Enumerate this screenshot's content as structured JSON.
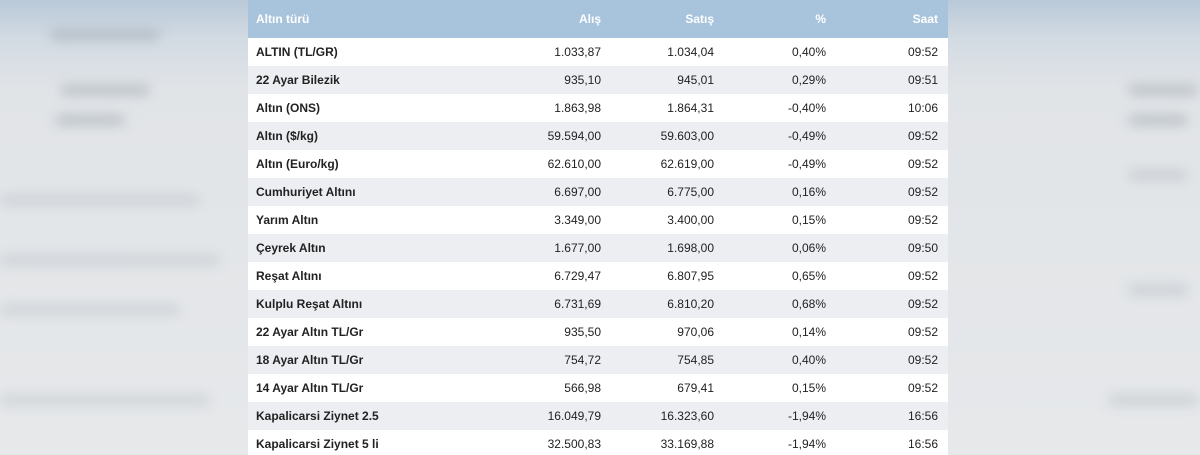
{
  "table": {
    "header": [
      "Altın türü",
      "Alış",
      "Satış",
      "%",
      "Saat"
    ],
    "rows": [
      [
        "ALTIN (TL/GR)",
        "1.033,87",
        "1.034,04",
        "0,40%",
        "09:52"
      ],
      [
        "22 Ayar Bilezik",
        "935,10",
        "945,01",
        "0,29%",
        "09:51"
      ],
      [
        "Altın (ONS)",
        "1.863,98",
        "1.864,31",
        "-0,40%",
        "10:06"
      ],
      [
        "Altın ($/kg)",
        "59.594,00",
        "59.603,00",
        "-0,49%",
        "09:52"
      ],
      [
        "Altın (Euro/kg)",
        "62.610,00",
        "62.619,00",
        "-0,49%",
        "09:52"
      ],
      [
        "Cumhuriyet Altını",
        "6.697,00",
        "6.775,00",
        "0,16%",
        "09:52"
      ],
      [
        "Yarım Altın",
        "3.349,00",
        "3.400,00",
        "0,15%",
        "09:52"
      ],
      [
        "Çeyrek Altın",
        "1.677,00",
        "1.698,00",
        "0,06%",
        "09:50"
      ],
      [
        "Reşat Altını",
        "6.729,47",
        "6.807,95",
        "0,65%",
        "09:52"
      ],
      [
        "Kulplu Reşat Altını",
        "6.731,69",
        "6.810,20",
        "0,68%",
        "09:52"
      ],
      [
        "22 Ayar Altın TL/Gr",
        "935,50",
        "970,06",
        "0,14%",
        "09:52"
      ],
      [
        "18 Ayar Altın TL/Gr",
        "754,72",
        "754,85",
        "0,40%",
        "09:52"
      ],
      [
        "14 Ayar Altın TL/Gr",
        "566,98",
        "679,41",
        "0,15%",
        "09:52"
      ],
      [
        "Kapalicarsi Ziynet 2.5",
        "16.049,79",
        "16.323,60",
        "-1,94%",
        "16:56"
      ],
      [
        "Kapalicarsi Ziynet 5 li",
        "32.500,83",
        "33.169,88",
        "-1,94%",
        "16:56"
      ]
    ]
  }
}
